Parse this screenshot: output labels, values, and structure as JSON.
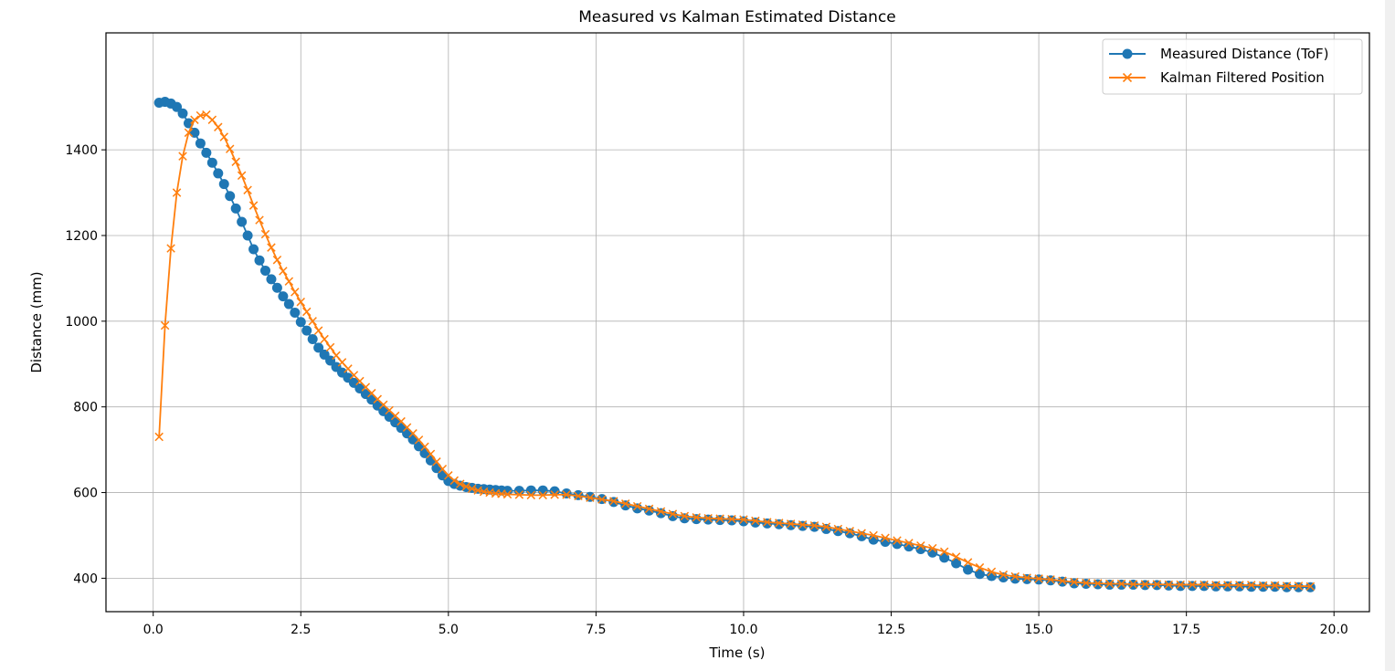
{
  "chart_data": {
    "type": "line",
    "title": "Measured vs Kalman Estimated Distance",
    "xlabel": "Time (s)",
    "ylabel": "Distance (mm)",
    "xlim": [
      -0.8,
      20.6
    ],
    "ylim": [
      322,
      1673
    ],
    "xticks": [
      0.0,
      2.5,
      5.0,
      7.5,
      10.0,
      12.5,
      15.0,
      17.5,
      20.0
    ],
    "xtick_labels": [
      "0.0",
      "2.5",
      "5.0",
      "7.5",
      "10.0",
      "12.5",
      "15.0",
      "17.5",
      "20.0"
    ],
    "yticks": [
      400,
      600,
      800,
      1000,
      1200,
      1400
    ],
    "ytick_labels": [
      "400",
      "600",
      "800",
      "1000",
      "1200",
      "1400"
    ],
    "grid": true,
    "legend_position": "top-right",
    "series": [
      {
        "name": "Measured Distance (ToF)",
        "color": "#1f77b4",
        "marker": "circle",
        "x": [
          0.1,
          0.2,
          0.3,
          0.4,
          0.5,
          0.6,
          0.7,
          0.8,
          0.9,
          1.0,
          1.1,
          1.2,
          1.3,
          1.4,
          1.5,
          1.6,
          1.7,
          1.8,
          1.9,
          2.0,
          2.1,
          2.2,
          2.3,
          2.4,
          2.5,
          2.6,
          2.7,
          2.8,
          2.9,
          3.0,
          3.1,
          3.2,
          3.3,
          3.4,
          3.5,
          3.6,
          3.7,
          3.8,
          3.9,
          4.0,
          4.1,
          4.2,
          4.3,
          4.4,
          4.5,
          4.6,
          4.7,
          4.8,
          4.9,
          5.0,
          5.1,
          5.2,
          5.3,
          5.4,
          5.5,
          5.6,
          5.7,
          5.8,
          5.9,
          6.0,
          6.2,
          6.4,
          6.6,
          6.8,
          7.0,
          7.2,
          7.4,
          7.6,
          7.8,
          8.0,
          8.2,
          8.4,
          8.6,
          8.8,
          9.0,
          9.2,
          9.4,
          9.6,
          9.8,
          10.0,
          10.2,
          10.4,
          10.6,
          10.8,
          11.0,
          11.2,
          11.4,
          11.6,
          11.8,
          12.0,
          12.2,
          12.4,
          12.6,
          12.8,
          13.0,
          13.2,
          13.4,
          13.6,
          13.8,
          14.0,
          14.2,
          14.4,
          14.6,
          14.8,
          15.0,
          15.2,
          15.4,
          15.6,
          15.8,
          16.0,
          16.2,
          16.4,
          16.6,
          16.8,
          17.0,
          17.2,
          17.4,
          17.6,
          17.8,
          18.0,
          18.2,
          18.4,
          18.6,
          18.8,
          19.0,
          19.2,
          19.4,
          19.6
        ],
        "y": [
          1510,
          1512,
          1508,
          1500,
          1485,
          1462,
          1440,
          1415,
          1393,
          1370,
          1345,
          1320,
          1292,
          1263,
          1232,
          1200,
          1168,
          1142,
          1118,
          1098,
          1078,
          1058,
          1040,
          1020,
          998,
          978,
          958,
          938,
          922,
          908,
          893,
          880,
          868,
          856,
          843,
          830,
          817,
          803,
          790,
          777,
          764,
          751,
          738,
          724,
          708,
          692,
          675,
          657,
          640,
          627,
          620,
          616,
          613,
          611,
          609,
          608,
          607,
          606,
          605,
          604,
          604,
          605,
          605,
          603,
          598,
          594,
          590,
          585,
          578,
          570,
          563,
          558,
          552,
          545,
          540,
          538,
          537,
          536,
          535,
          533,
          530,
          528,
          526,
          524,
          522,
          520,
          515,
          510,
          505,
          498,
          490,
          485,
          480,
          474,
          468,
          460,
          448,
          435,
          420,
          410,
          405,
          402,
          399,
          398,
          397,
          395,
          392,
          388,
          387,
          386,
          385,
          385,
          385,
          384,
          384,
          383,
          382,
          382,
          382,
          381,
          381,
          381,
          380,
          380,
          380,
          379,
          379,
          379
        ]
      },
      {
        "name": "Kalman Filtered Position",
        "color": "#ff7f0e",
        "marker": "x",
        "x": [
          0.1,
          0.2,
          0.3,
          0.4,
          0.5,
          0.6,
          0.7,
          0.8,
          0.9,
          1.0,
          1.1,
          1.2,
          1.3,
          1.4,
          1.5,
          1.6,
          1.7,
          1.8,
          1.9,
          2.0,
          2.1,
          2.2,
          2.3,
          2.4,
          2.5,
          2.6,
          2.7,
          2.8,
          2.9,
          3.0,
          3.1,
          3.2,
          3.3,
          3.4,
          3.5,
          3.6,
          3.7,
          3.8,
          3.9,
          4.0,
          4.1,
          4.2,
          4.3,
          4.4,
          4.5,
          4.6,
          4.7,
          4.8,
          4.9,
          5.0,
          5.1,
          5.2,
          5.3,
          5.4,
          5.5,
          5.6,
          5.7,
          5.8,
          5.9,
          6.0,
          6.2,
          6.4,
          6.6,
          6.8,
          7.0,
          7.2,
          7.4,
          7.6,
          7.8,
          8.0,
          8.2,
          8.4,
          8.6,
          8.8,
          9.0,
          9.2,
          9.4,
          9.6,
          9.8,
          10.0,
          10.2,
          10.4,
          10.6,
          10.8,
          11.0,
          11.2,
          11.4,
          11.6,
          11.8,
          12.0,
          12.2,
          12.4,
          12.6,
          12.8,
          13.0,
          13.2,
          13.4,
          13.6,
          13.8,
          14.0,
          14.2,
          14.4,
          14.6,
          14.8,
          15.0,
          15.2,
          15.4,
          15.6,
          15.8,
          16.0,
          16.2,
          16.4,
          16.6,
          16.8,
          17.0,
          17.2,
          17.4,
          17.6,
          17.8,
          18.0,
          18.2,
          18.4,
          18.6,
          18.8,
          19.0,
          19.2,
          19.4,
          19.6
        ],
        "y": [
          730,
          990,
          1170,
          1300,
          1385,
          1440,
          1470,
          1480,
          1482,
          1470,
          1453,
          1430,
          1402,
          1372,
          1340,
          1306,
          1270,
          1236,
          1203,
          1172,
          1143,
          1117,
          1093,
          1068,
          1045,
          1022,
          1000,
          978,
          958,
          939,
          920,
          904,
          889,
          874,
          860,
          846,
          832,
          818,
          805,
          792,
          779,
          766,
          752,
          738,
          723,
          707,
          690,
          672,
          655,
          640,
          628,
          620,
          614,
          609,
          605,
          602,
          600,
          598,
          597,
          596,
          595,
          594,
          594,
          595,
          595,
          592,
          588,
          584,
          580,
          574,
          568,
          562,
          556,
          550,
          545,
          542,
          540,
          539,
          538,
          537,
          534,
          531,
          529,
          527,
          525,
          523,
          520,
          515,
          510,
          505,
          500,
          494,
          488,
          482,
          476,
          470,
          462,
          450,
          437,
          425,
          415,
          408,
          404,
          401,
          399,
          397,
          394,
          391,
          389,
          388,
          387,
          387,
          386,
          386,
          386,
          385,
          385,
          385,
          385,
          384,
          384,
          384,
          384,
          383,
          383,
          382,
          382,
          381
        ]
      }
    ]
  }
}
